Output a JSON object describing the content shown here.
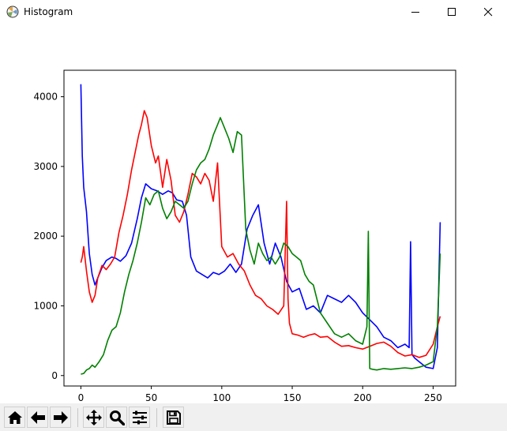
{
  "window": {
    "title": "Histogram"
  },
  "toolbar": {
    "buttons": [
      {
        "icon": "home-icon"
      },
      {
        "icon": "back-arrow-icon"
      },
      {
        "icon": "forward-arrow-icon"
      },
      {
        "icon": "pan-icon"
      },
      {
        "icon": "zoom-icon"
      },
      {
        "icon": "configure-subplots-icon"
      },
      {
        "icon": "save-icon"
      }
    ]
  },
  "chart_data": {
    "type": "line",
    "title": "",
    "xlabel": "",
    "ylabel": "",
    "xlim": [
      -12,
      266
    ],
    "ylim": [
      -150,
      4380
    ],
    "xticks": [
      0,
      50,
      100,
      150,
      200,
      250
    ],
    "yticks": [
      0,
      1000,
      2000,
      3000,
      4000
    ],
    "grid": false,
    "series": [
      {
        "color": "#0000ff",
        "x": [
          0,
          1,
          2,
          4,
          6,
          8,
          10,
          12,
          15,
          18,
          22,
          25,
          28,
          32,
          36,
          40,
          43,
          46,
          50,
          54,
          58,
          62,
          65,
          68,
          72,
          75,
          78,
          82,
          86,
          90,
          94,
          98,
          102,
          106,
          110,
          114,
          118,
          122,
          126,
          130,
          134,
          138,
          142,
          146,
          150,
          155,
          160,
          165,
          170,
          175,
          180,
          185,
          190,
          195,
          200,
          205,
          210,
          215,
          220,
          225,
          230,
          233,
          234,
          235,
          237,
          240,
          245,
          250,
          253,
          255
        ],
        "y": [
          4180,
          3150,
          2700,
          2350,
          1750,
          1450,
          1300,
          1400,
          1550,
          1650,
          1700,
          1680,
          1640,
          1720,
          1900,
          2250,
          2550,
          2750,
          2680,
          2650,
          2600,
          2650,
          2620,
          2520,
          2500,
          2300,
          1700,
          1500,
          1450,
          1400,
          1480,
          1450,
          1500,
          1600,
          1480,
          1600,
          2100,
          2300,
          2450,
          1900,
          1600,
          1900,
          1700,
          1350,
          1200,
          1250,
          950,
          1000,
          900,
          1150,
          1100,
          1050,
          1150,
          1050,
          900,
          800,
          700,
          550,
          500,
          400,
          450,
          400,
          1920,
          300,
          250,
          200,
          120,
          100,
          400,
          2200
        ]
      },
      {
        "color": "#ff0000",
        "x": [
          0,
          1,
          2,
          4,
          6,
          8,
          10,
          12,
          15,
          18,
          21,
          24,
          27,
          30,
          33,
          36,
          39,
          41,
          43,
          45,
          47,
          50,
          53,
          55,
          58,
          61,
          64,
          67,
          70,
          73,
          76,
          79,
          82,
          85,
          88,
          91,
          94,
          97,
          100,
          104,
          108,
          112,
          116,
          120,
          124,
          128,
          132,
          136,
          140,
          144,
          146,
          147,
          148,
          150,
          154,
          158,
          162,
          166,
          170,
          175,
          180,
          185,
          190,
          195,
          200,
          205,
          210,
          215,
          220,
          225,
          230,
          235,
          240,
          245,
          250,
          253,
          255
        ],
        "y": [
          1620,
          1700,
          1850,
          1500,
          1200,
          1050,
          1150,
          1400,
          1580,
          1520,
          1600,
          1700,
          2050,
          2300,
          2600,
          2950,
          3250,
          3450,
          3600,
          3800,
          3700,
          3300,
          3050,
          3150,
          2700,
          3100,
          2800,
          2300,
          2200,
          2350,
          2600,
          2900,
          2850,
          2750,
          2900,
          2800,
          2500,
          3050,
          1850,
          1700,
          1750,
          1600,
          1500,
          1300,
          1150,
          1100,
          1000,
          950,
          880,
          1000,
          2500,
          1100,
          750,
          600,
          580,
          550,
          580,
          600,
          550,
          560,
          480,
          420,
          430,
          400,
          380,
          420,
          460,
          480,
          420,
          330,
          280,
          300,
          260,
          290,
          450,
          700,
          850
        ]
      },
      {
        "color": "#008000",
        "x": [
          0,
          2,
          4,
          6,
          8,
          10,
          13,
          16,
          19,
          22,
          25,
          28,
          31,
          34,
          37,
          40,
          43,
          46,
          49,
          52,
          55,
          58,
          61,
          64,
          67,
          70,
          73,
          76,
          79,
          82,
          85,
          88,
          91,
          94,
          97,
          99,
          102,
          105,
          108,
          111,
          114,
          117,
          120,
          123,
          126,
          129,
          132,
          135,
          138,
          141,
          144,
          147,
          150,
          153,
          156,
          159,
          162,
          165,
          170,
          175,
          180,
          185,
          190,
          195,
          200,
          203,
          204,
          205,
          207,
          210,
          215,
          220,
          225,
          230,
          235,
          240,
          245,
          250,
          253,
          255
        ],
        "y": [
          20,
          30,
          80,
          100,
          150,
          120,
          200,
          300,
          500,
          650,
          700,
          900,
          1200,
          1450,
          1650,
          1900,
          2200,
          2550,
          2450,
          2600,
          2650,
          2400,
          2250,
          2350,
          2500,
          2450,
          2400,
          2500,
          2750,
          2950,
          3050,
          3100,
          3250,
          3450,
          3600,
          3700,
          3550,
          3400,
          3200,
          3500,
          3450,
          2100,
          1800,
          1600,
          1900,
          1750,
          1650,
          1700,
          1600,
          1700,
          1900,
          1850,
          1750,
          1700,
          1650,
          1450,
          1350,
          1300,
          900,
          750,
          600,
          550,
          600,
          500,
          450,
          700,
          2070,
          100,
          90,
          80,
          100,
          90,
          100,
          110,
          100,
          120,
          150,
          200,
          700,
          1750
        ]
      }
    ]
  }
}
